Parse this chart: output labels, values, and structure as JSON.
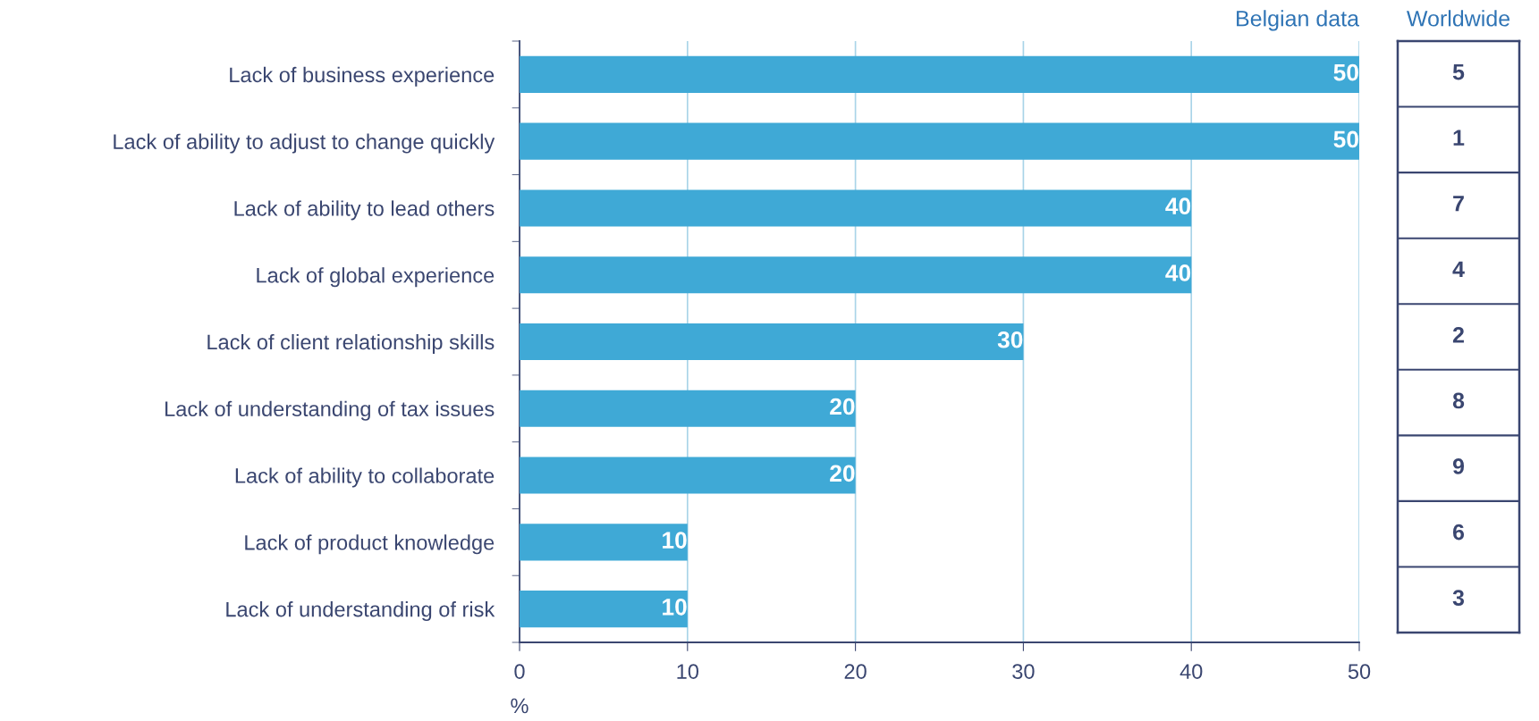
{
  "chart_data": [
    {
      "type": "bar",
      "orientation": "horizontal",
      "title": "Belgian data",
      "xlabel": "%",
      "categories": [
        "Lack of business experience",
        "Lack of ability to adjust to change quickly",
        "Lack of ability to lead others",
        "Lack of global experience",
        "Lack of client relationship skills",
        "Lack of understanding of tax issues",
        "Lack of ability to collaborate",
        "Lack of product knowledge",
        "Lack of understanding of risk"
      ],
      "values": [
        50,
        50,
        40,
        40,
        30,
        20,
        20,
        10,
        10
      ],
      "color": "#3fa9d6",
      "xlim": [
        0,
        50
      ],
      "xticks": [
        0,
        10,
        20,
        30,
        40,
        50
      ],
      "grid": "x",
      "data_labels": true,
      "legend": false
    },
    {
      "type": "other",
      "title": "Worldwide",
      "annotations": [
        "5",
        "1",
        "7",
        "4",
        "2",
        "8",
        "9",
        "6",
        "3"
      ]
    }
  ]
}
